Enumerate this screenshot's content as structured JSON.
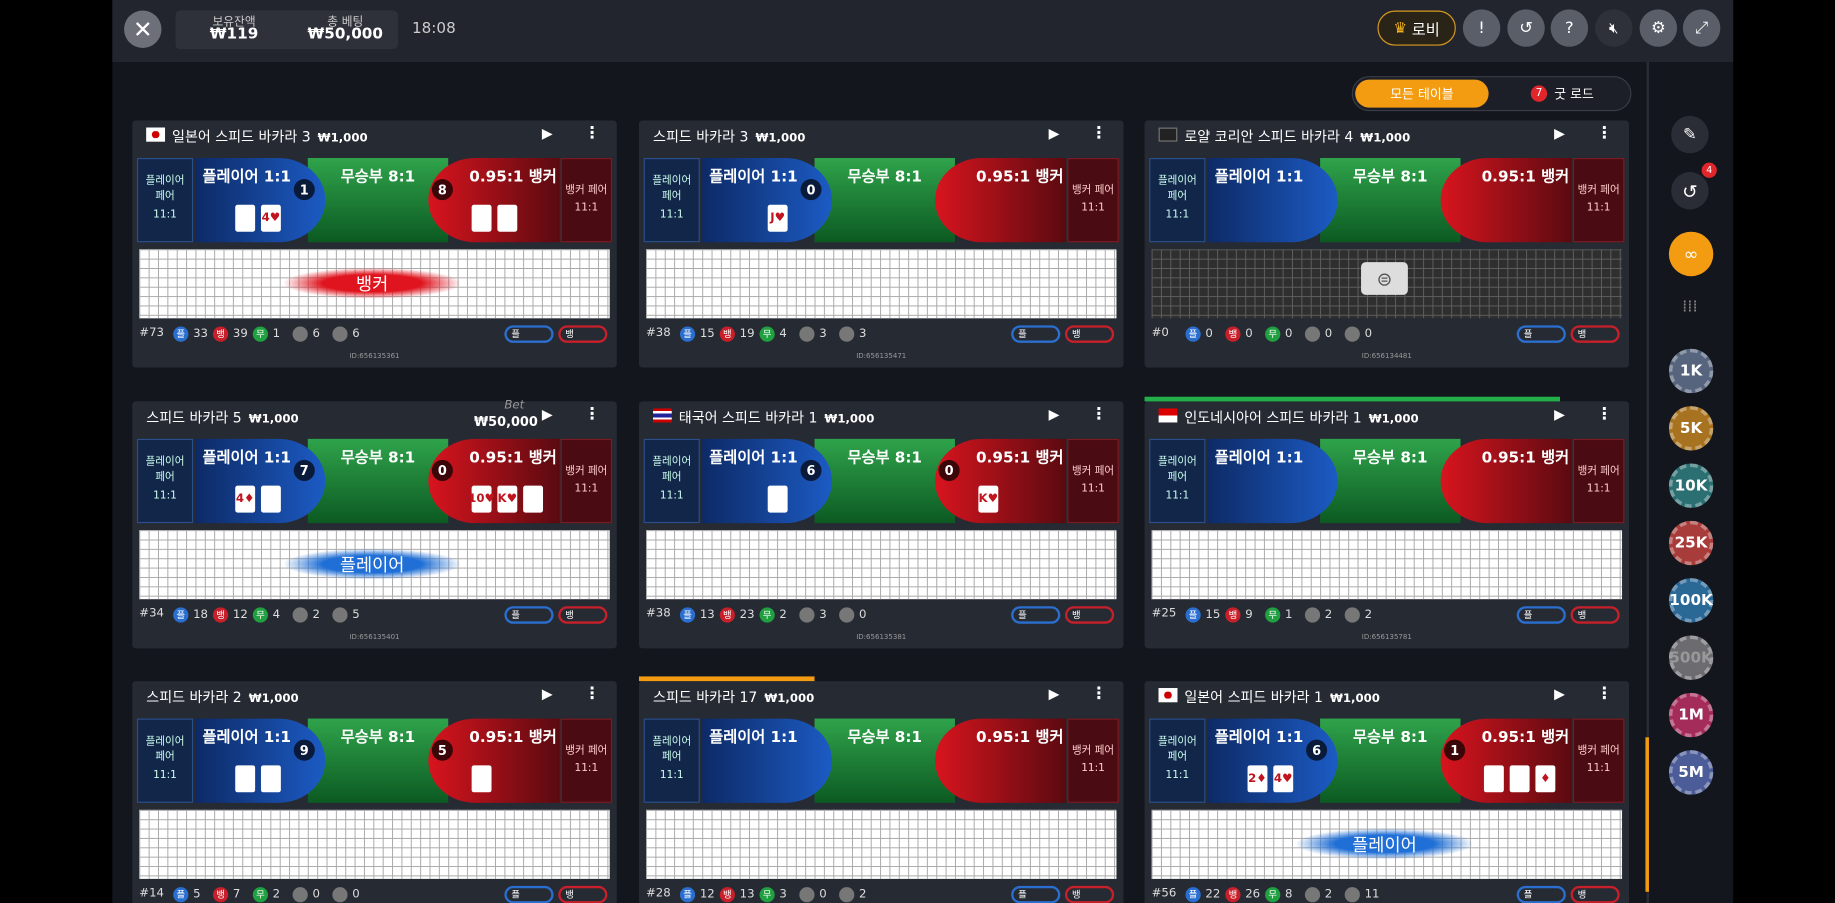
{
  "header": {
    "balance_label": "보유잔액",
    "balance": "₩119",
    "total_bet_label": "총 베팅",
    "total_bet": "₩50,000",
    "time": "18:08",
    "lobby": "로비"
  },
  "tabs": {
    "all_tables": "모든 테이블",
    "good_road_count": "7",
    "good_road": "굿 로드"
  },
  "bet_labels": {
    "player_pair": "플레이어 페어",
    "pair_payout": "11:1",
    "player": "플레이어 1:1",
    "tie": "무승부 8:1",
    "banker": "0.95:1 뱅커",
    "banker_pair": "뱅커 페어"
  },
  "stat_labels": {
    "player": "플",
    "banker": "뱅",
    "tie": "무"
  },
  "tables": [
    {
      "flag": "jp",
      "name": "일본어 스피드 바카라 3",
      "limit": "₩1,000",
      "player_score": "1",
      "banker_score": "8",
      "player_cards": [
        null,
        "4♥"
      ],
      "banker_cards": [
        null,
        null
      ],
      "round": "#73",
      "player_wins": 33,
      "banker_wins": 39,
      "ties": 1,
      "player_pairs": 6,
      "banker_pairs": 6,
      "id": "ID:656135361",
      "overlay": "뱅커",
      "overlay_color": "#e0141e"
    },
    {
      "name": "스피드 바카라 3",
      "limit": "₩1,000",
      "player_score": "0",
      "player_cards": [
        "J♥"
      ],
      "round": "#38",
      "player_wins": 15,
      "banker_wins": 19,
      "ties": 4,
      "player_pairs": 3,
      "banker_pairs": 3,
      "id": "ID:656135471"
    },
    {
      "flag": "kr",
      "name": "로얄 코리안 스피드 바카라 4",
      "limit": "₩1,000",
      "round": "#0",
      "player_wins": 0,
      "banker_wins": 0,
      "ties": 0,
      "player_pairs": 0,
      "banker_pairs": 0,
      "id": "ID:656134481",
      "closed": true
    },
    {
      "name": "스피드 바카라 5",
      "limit": "₩1,000",
      "bet_label": "Bet",
      "bet_amount": "₩50,000",
      "player_score": "7",
      "banker_score": "0",
      "player_cards": [
        "4♦",
        null
      ],
      "banker_cards": [
        "10♥",
        "K♥",
        null
      ],
      "round": "#34",
      "player_wins": 18,
      "banker_wins": 12,
      "ties": 4,
      "player_pairs": 2,
      "banker_pairs": 5,
      "id": "ID:656135401",
      "overlay": "플레이어",
      "overlay_color": "#1f6fd6"
    },
    {
      "flag": "th",
      "name": "태국어 스피드 바카라 1",
      "limit": "₩1,000",
      "player_score": "6",
      "banker_score": "0",
      "player_cards": [
        null
      ],
      "banker_cards": [
        "K♥"
      ],
      "round": "#38",
      "player_wins": 13,
      "banker_wins": 23,
      "ties": 2,
      "player_pairs": 3,
      "banker_pairs": 0,
      "id": "ID:656135381"
    },
    {
      "flag": "id",
      "name": "인도네시아어 스피드 바카라 1",
      "limit": "₩1,000",
      "accent": "#23b04a",
      "round": "#25",
      "player_wins": 15,
      "banker_wins": 9,
      "ties": 1,
      "player_pairs": 2,
      "banker_pairs": 2,
      "id": "ID:656135781"
    },
    {
      "name": "스피드 바카라 2",
      "limit": "₩1,000",
      "player_score": "9",
      "banker_score": "5",
      "player_cards": [
        null,
        null
      ],
      "banker_cards": [
        null
      ],
      "round": "#14",
      "player_wins": 5,
      "banker_wins": 7,
      "ties": 2,
      "player_pairs": 0,
      "banker_pairs": 0
    },
    {
      "name": "스피드 바카라 17",
      "limit": "₩1,000",
      "accent": "#f39c12",
      "round": "#28",
      "player_wins": 12,
      "banker_wins": 13,
      "ties": 3,
      "player_pairs": 0,
      "banker_pairs": 2
    },
    {
      "flag": "jp",
      "name": "일본어 스피드 바카라 1",
      "limit": "₩1,000",
      "player_score": "6",
      "banker_score": "1",
      "player_cards": [
        "2♦",
        "4♥"
      ],
      "banker_cards": [
        null,
        null,
        "♦"
      ],
      "round": "#56",
      "player_wins": 22,
      "banker_wins": 26,
      "ties": 8,
      "player_pairs": 2,
      "banker_pairs": 11,
      "overlay": "플레이어",
      "overlay_color": "#1f6fd6"
    }
  ],
  "sidebar": {
    "history_badge": "4",
    "chips": [
      {
        "label": "1K",
        "color": "#56657d"
      },
      {
        "label": "5K",
        "color": "#a87320"
      },
      {
        "label": "10K",
        "color": "#2b6f72"
      },
      {
        "label": "25K",
        "color": "#a83c3a"
      },
      {
        "label": "100K",
        "color": "#2a6896"
      },
      {
        "label": "500K",
        "color": "#6b6b70"
      },
      {
        "label": "1M",
        "color": "#a42c5a"
      },
      {
        "label": "5M",
        "color": "#4c5c98"
      }
    ]
  }
}
